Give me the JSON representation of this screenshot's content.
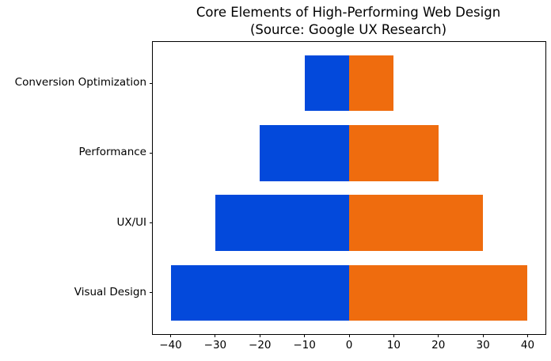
{
  "chart_data": {
    "type": "bar",
    "orientation": "horizontal",
    "diverging": true,
    "title": "Core Elements of High-Performing Web Design\n(Source: Google UX Research)",
    "title_lines": [
      "Core Elements of High-Performing Web Design",
      "(Source: Google UX Research)"
    ],
    "categories": [
      "Conversion Optimization",
      "Performance",
      "UX/UI",
      "Visual Design"
    ],
    "series": [
      {
        "name": "left",
        "color": "#0349db",
        "values": [
          -10,
          -20,
          -30,
          -40
        ]
      },
      {
        "name": "right",
        "color": "#ef6c0e",
        "values": [
          10,
          20,
          30,
          40
        ]
      }
    ],
    "xlabel": "",
    "ylabel": "",
    "xlim": [
      -44,
      44
    ],
    "xticks": {
      "values": [
        -40,
        -30,
        -20,
        -10,
        0,
        10,
        20,
        30,
        40
      ],
      "labels": [
        "−40",
        "−30",
        "−20",
        "−10",
        "0",
        "10",
        "20",
        "30",
        "40"
      ]
    },
    "grid": false,
    "legend": false,
    "bar_height_fraction": 0.8,
    "background_color": "#ffffff",
    "spine_color": "#000000"
  }
}
